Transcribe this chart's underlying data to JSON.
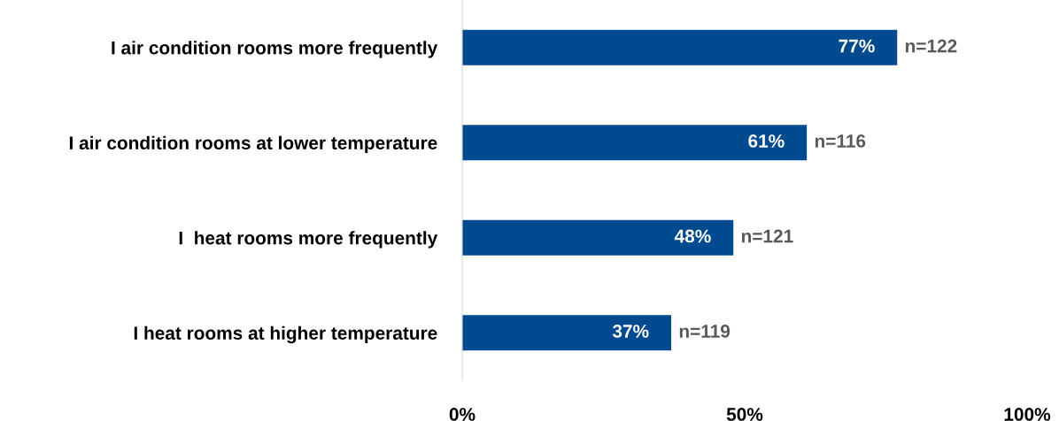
{
  "chart_data": {
    "type": "bar",
    "orientation": "horizontal",
    "categories": [
      "I air condition rooms more frequently",
      "I air condition rooms at lower temperature",
      "I  heat rooms more frequently",
      "I heat rooms at higher temperature"
    ],
    "values": [
      77,
      61,
      48,
      37
    ],
    "color": "#004a8f",
    "data_labels": true,
    "value_labels": [
      "77%",
      "61%",
      "48%",
      "37%"
    ],
    "xlim": [
      0,
      100
    ],
    "xticks": [
      {
        "value": 0,
        "label": "0%"
      },
      {
        "value": 50,
        "label": "50%"
      },
      {
        "value": 100,
        "label": "100%"
      }
    ],
    "grid": false,
    "legend": false,
    "annotations": [
      {
        "text": "n=122",
        "x": 77,
        "y": "I air condition rooms more frequently"
      },
      {
        "text": "n=116",
        "x": 61,
        "y": "I air condition rooms at lower temperature"
      },
      {
        "text": "n=121",
        "x": 48,
        "y": "I  heat rooms more frequently"
      },
      {
        "text": "n=119",
        "x": 37,
        "y": "I heat rooms at higher temperature"
      }
    ]
  }
}
